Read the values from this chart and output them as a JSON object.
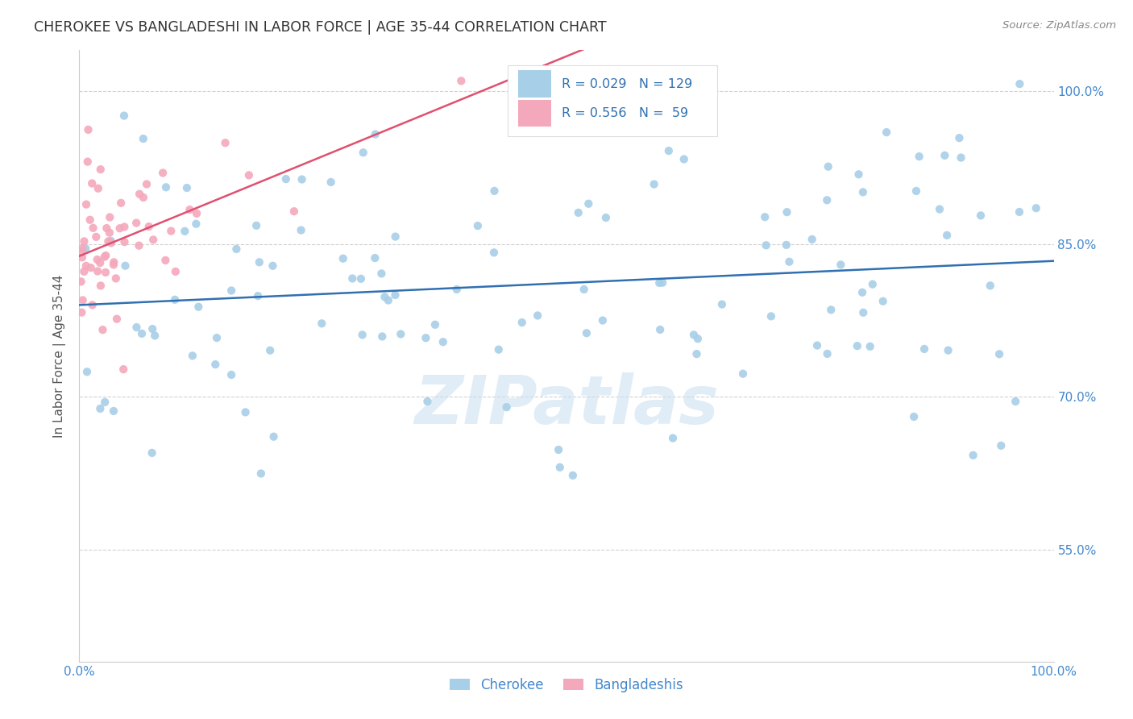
{
  "title": "CHEROKEE VS BANGLADESHI IN LABOR FORCE | AGE 35-44 CORRELATION CHART",
  "source": "Source: ZipAtlas.com",
  "ylabel": "In Labor Force | Age 35-44",
  "xlim": [
    0.0,
    1.0
  ],
  "ylim": [
    0.44,
    1.04
  ],
  "yticks": [
    0.55,
    0.7,
    0.85,
    1.0
  ],
  "ytick_labels": [
    "55.0%",
    "70.0%",
    "85.0%",
    "100.0%"
  ],
  "xticks": [
    0.0,
    0.2,
    0.4,
    0.6,
    0.8,
    1.0
  ],
  "xtick_labels": [
    "0.0%",
    "",
    "",
    "",
    "",
    "100.0%"
  ],
  "cherokee_color": "#a8cfe8",
  "bangladeshi_color": "#f4a8bc",
  "cherokee_line_color": "#3070b0",
  "bangladeshi_line_color": "#e05070",
  "legend_text_color": "#3070b0",
  "R_cherokee": "0.029",
  "N_cherokee": "129",
  "R_bangladeshi": "0.556",
  "N_bangladeshi": "59",
  "watermark": "ZIPatlas",
  "background_color": "#ffffff",
  "grid_color": "#cccccc",
  "tick_label_color": "#4488cc"
}
